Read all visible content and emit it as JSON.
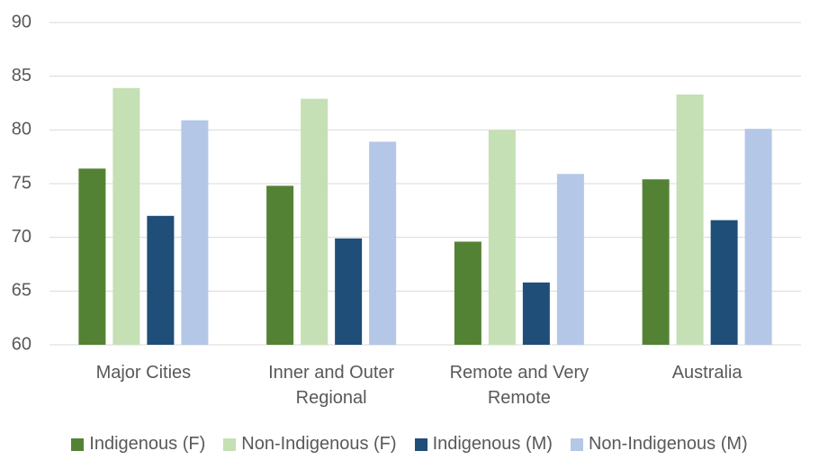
{
  "chart_data": {
    "type": "bar",
    "categories": [
      "Major Cities",
      "Inner and Outer Regional",
      "Remote and Very Remote",
      "Australia"
    ],
    "series": [
      {
        "name": "Indigenous (F)",
        "color": "#548235",
        "values": [
          76.4,
          74.8,
          69.6,
          75.4
        ]
      },
      {
        "name": "Non-Indigenous (F)",
        "color": "#c5e0b4",
        "values": [
          83.9,
          82.9,
          80.0,
          83.3
        ]
      },
      {
        "name": "Indigenous (M)",
        "color": "#1f4e79",
        "values": [
          72.0,
          69.9,
          65.8,
          71.6
        ]
      },
      {
        "name": "Non-Indigenous (M)",
        "color": "#b4c7e7",
        "values": [
          80.9,
          78.9,
          75.9,
          80.1
        ]
      }
    ],
    "ylim": [
      60,
      90
    ],
    "yticks": [
      60,
      65,
      70,
      75,
      80,
      85,
      90
    ],
    "grid": true,
    "legend": "bottom"
  }
}
